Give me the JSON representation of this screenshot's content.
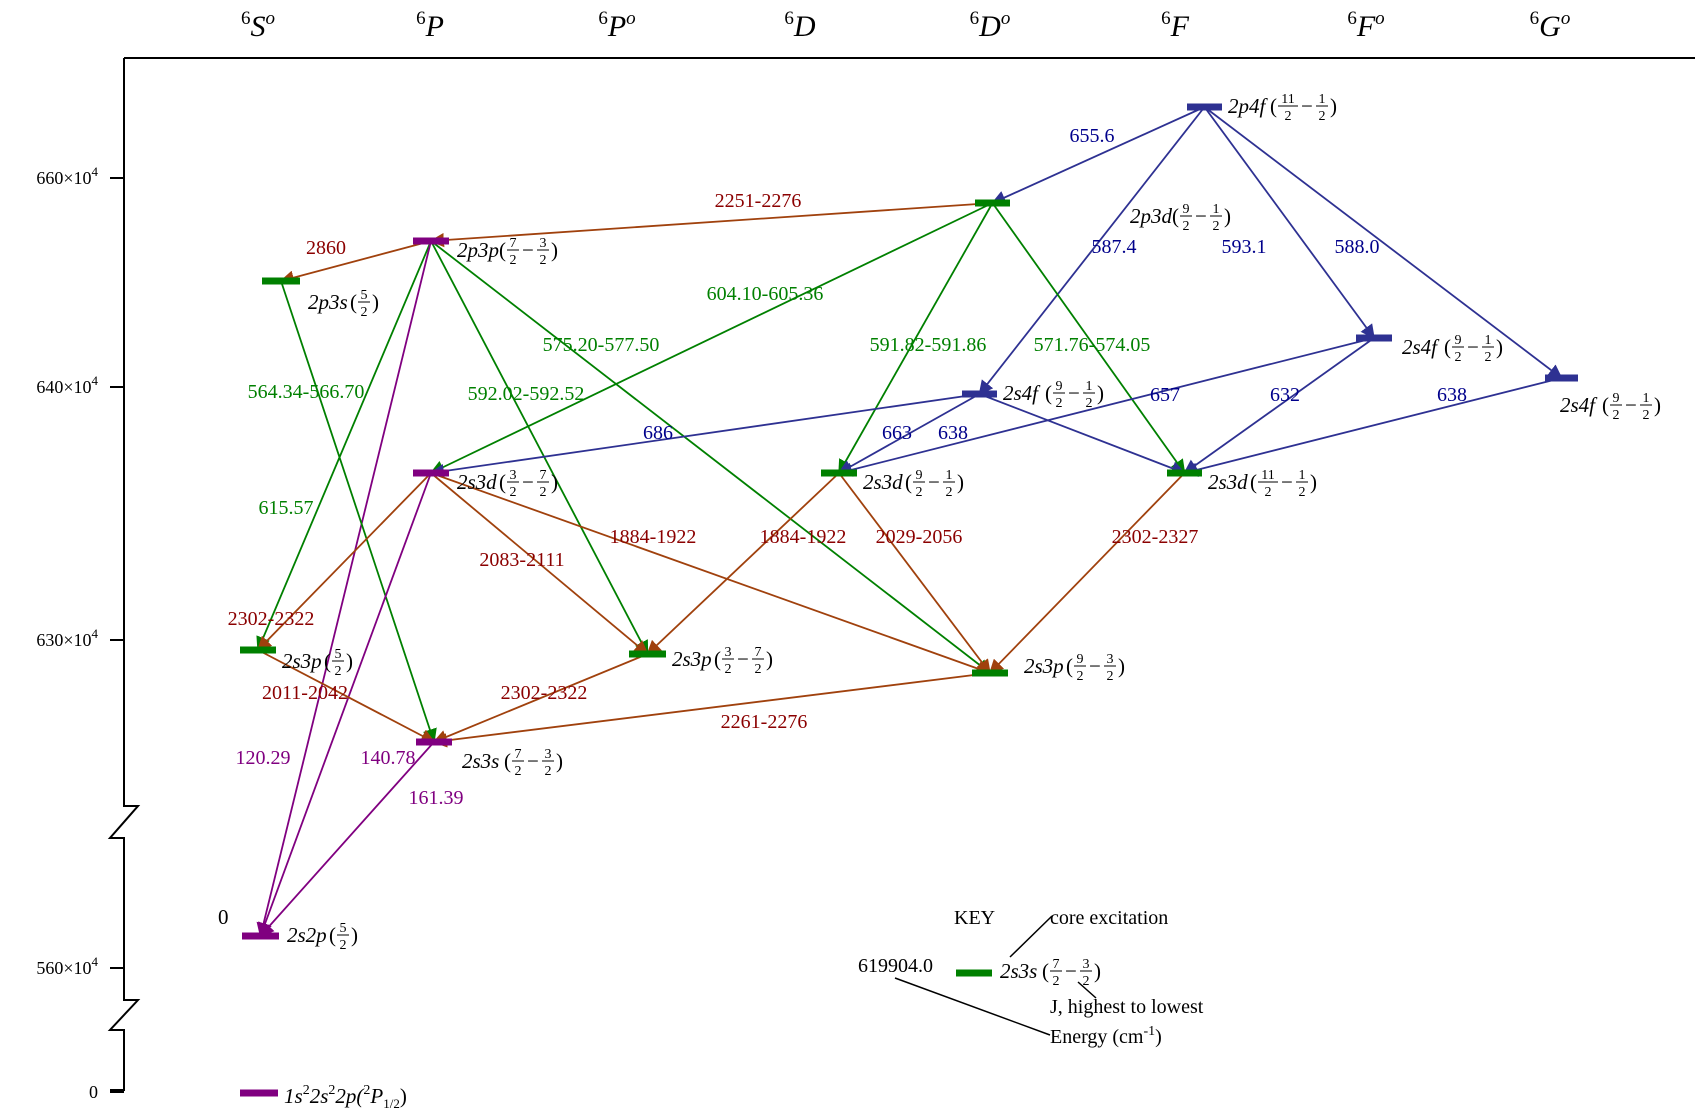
{
  "columns": [
    {
      "id": "S_o",
      "base": "S",
      "sup": "6",
      "o": true
    },
    {
      "id": "P",
      "base": "P",
      "sup": "6",
      "o": false
    },
    {
      "id": "P_o",
      "base": "P",
      "sup": "6",
      "o": true
    },
    {
      "id": "D",
      "base": "D",
      "sup": "6",
      "o": false
    },
    {
      "id": "D_o",
      "base": "D",
      "sup": "6",
      "o": true
    },
    {
      "id": "F",
      "base": "F",
      "sup": "6",
      "o": false
    },
    {
      "id": "F_o",
      "base": "F",
      "sup": "6",
      "o": true
    },
    {
      "id": "G_o",
      "base": "G",
      "sup": "6",
      "o": true
    }
  ],
  "axis": {
    "ticks": [
      {
        "value": "660×10",
        "exp": "4"
      },
      {
        "value": "640×10",
        "exp": "4"
      },
      {
        "value": "630×10",
        "exp": "4"
      },
      {
        "value": "560×10",
        "exp": "4"
      },
      {
        "value": "0",
        "exp": ""
      }
    ]
  },
  "colors": {
    "purple": "#800080",
    "green": "#008000",
    "blue": "#2e3192",
    "red": "#a0410d",
    "label_red": "#8b0000",
    "label_blue": "#00008b",
    "black": "#000000"
  },
  "levels": [
    {
      "id": "L2p4f",
      "config": "2p4f",
      "num": "11",
      "den": "2",
      "num2": "1",
      "den2": "2",
      "color": "blue"
    },
    {
      "id": "L2p3d",
      "config": "2p3d",
      "num": "9",
      "den": "2",
      "num2": "1",
      "den2": "2",
      "color": "green"
    },
    {
      "id": "L2p3p",
      "config": "2p3p",
      "num": "7",
      "den": "2",
      "num2": "3",
      "den2": "2",
      "color": "purple"
    },
    {
      "id": "L2p3s",
      "config": "2p3s",
      "num": "5",
      "den": "2",
      "color": "green"
    },
    {
      "id": "L2s4fF",
      "config": "2s4f",
      "num": "9",
      "den": "2",
      "num2": "1",
      "den2": "2",
      "color": "blue"
    },
    {
      "id": "L2s4fG",
      "config": "2s4f",
      "num": "9",
      "den": "2",
      "num2": "1",
      "den2": "2",
      "color": "blue"
    },
    {
      "id": "L2s4fD",
      "config": "2s4f",
      "num": "9",
      "den": "2",
      "num2": "1",
      "den2": "2",
      "color": "blue"
    },
    {
      "id": "L2s3dP",
      "config": "2s3d",
      "num": "3",
      "den": "2",
      "num2": "7",
      "den2": "2",
      "color": "purple"
    },
    {
      "id": "L2s3dD",
      "config": "2s3d",
      "num": "9",
      "den": "2",
      "num2": "1",
      "den2": "2",
      "color": "green"
    },
    {
      "id": "L2s3dF",
      "config": "2s3d",
      "num": "11",
      "den": "2",
      "num2": "1",
      "den2": "2",
      "color": "green"
    },
    {
      "id": "L2s3pS",
      "config": "2s3p",
      "num": "5",
      "den": "2",
      "color": "green"
    },
    {
      "id": "L2s3pP",
      "config": "2s3p",
      "num": "3",
      "den": "2",
      "num2": "7",
      "den2": "2",
      "color": "green"
    },
    {
      "id": "L2s3pD",
      "config": "2s3p",
      "num": "9",
      "den": "2",
      "num2": "3",
      "den2": "2",
      "color": "green"
    },
    {
      "id": "L2s3s",
      "config": "2s3s",
      "num": "7",
      "den": "2",
      "num2": "3",
      "den2": "2",
      "color": "purple"
    },
    {
      "id": "L2s2p",
      "config": "2s2p",
      "num": "5",
      "den": "2",
      "color": "purple"
    }
  ],
  "ground_energy": "0",
  "transitions": [
    {
      "from": "L2p4f",
      "to": "L2p3d",
      "label": "655.6",
      "color": "blue"
    },
    {
      "from": "L2p4f",
      "to": "L2s4fD",
      "label": "587.4",
      "color": "blue"
    },
    {
      "from": "L2p4f",
      "to": "L2s4fF",
      "label": "593.1",
      "color": "blue"
    },
    {
      "from": "L2p4f",
      "to": "L2s4fG",
      "label": "588.0",
      "color": "blue"
    },
    {
      "from": "L2p3d",
      "to": "L2p3p",
      "label": "2251-2276",
      "color": "red"
    },
    {
      "from": "L2p3d",
      "to": "L2s3dP",
      "label": "604.10-605.36",
      "color": "green"
    },
    {
      "from": "L2p3d",
      "to": "L2s3dD",
      "label": "591.82-591.86",
      "color": "green"
    },
    {
      "from": "L2p3d",
      "to": "L2s3dF",
      "label": "571.76-574.05",
      "color": "green"
    },
    {
      "from": "L2p3p",
      "to": "L2p3s",
      "label": "2860",
      "color": "red"
    },
    {
      "from": "L2p3p",
      "to": "L2s3pS",
      "label": "615.57",
      "color": "green"
    },
    {
      "from": "L2p3p",
      "to": "L2s3pP",
      "label": "592.02-592.52",
      "color": "green"
    },
    {
      "from": "L2p3p",
      "to": "L2s3pD",
      "label": "575.20-577.50",
      "color": "green"
    },
    {
      "from": "L2p3p",
      "to": "L2s2p",
      "label": "120.29",
      "color": "purple"
    },
    {
      "from": "L2p3s",
      "to": "L2s3s",
      "label": "564.34-566.70",
      "color": "green"
    },
    {
      "from": "L2s4fF",
      "to": "L2s3dD",
      "label": "657",
      "color": "blue"
    },
    {
      "from": "L2s4fF",
      "to": "L2s3dF",
      "label": "632",
      "color": "blue"
    },
    {
      "from": "L2s4fG",
      "to": "L2s3dF",
      "label": "638",
      "color": "blue"
    },
    {
      "from": "L2s4fD",
      "to": "L2s3dP",
      "label": "686",
      "color": "blue"
    },
    {
      "from": "L2s4fD",
      "to": "L2s3dD",
      "label": "663",
      "color": "blue"
    },
    {
      "from": "L2s4fD",
      "to": "L2s3dF",
      "label": "638",
      "color": "blue"
    },
    {
      "from": "L2s3dP",
      "to": "L2s3pS",
      "label": "2302-2322",
      "color": "red"
    },
    {
      "from": "L2s3dP",
      "to": "L2s3pP",
      "label": "2083-2111",
      "color": "red"
    },
    {
      "from": "L2s3dP",
      "to": "L2s3pD",
      "label": "1884-1922",
      "color": "red"
    },
    {
      "from": "L2s3dP",
      "to": "L2s2p",
      "label": "140.78",
      "color": "purple"
    },
    {
      "from": "L2s3dD",
      "to": "L2s3pP",
      "label": "1884-1922",
      "color": "red"
    },
    {
      "from": "L2s3dD",
      "to": "L2s3pD",
      "label": "2029-2056",
      "color": "red"
    },
    {
      "from": "L2s3dF",
      "to": "L2s3pD",
      "label": "2302-2327",
      "color": "red"
    },
    {
      "from": "L2s3pS",
      "to": "L2s3s",
      "label": "2011-2042",
      "color": "red"
    },
    {
      "from": "L2s3pP",
      "to": "L2s3s",
      "label": "2302-2322",
      "color": "red"
    },
    {
      "from": "L2s3pD",
      "to": "L2s3s",
      "label": "2261-2276",
      "color": "red"
    },
    {
      "from": "L2s3s",
      "to": "L2s2p",
      "label": "161.39",
      "color": "purple"
    }
  ],
  "key": {
    "title": "KEY",
    "example_energy": "619904.0",
    "example_config": "2s3s",
    "example_num": "7",
    "example_den": "2",
    "example_num2": "3",
    "example_den2": "2",
    "core_excitation": "core excitation",
    "j_note": "J, highest to lowest",
    "energy_note": "Energy (cm",
    "energy_sup": "-1",
    "energy_close": ")",
    "ground_prefix": "1s",
    "ground_sup1": "2",
    "ground_mid": "2s",
    "ground_sup2": "2",
    "ground_mid2": "2p(",
    "ground_sup3": "2",
    "ground_P": "P",
    "ground_sub": "1/2",
    "ground_close": ")"
  }
}
